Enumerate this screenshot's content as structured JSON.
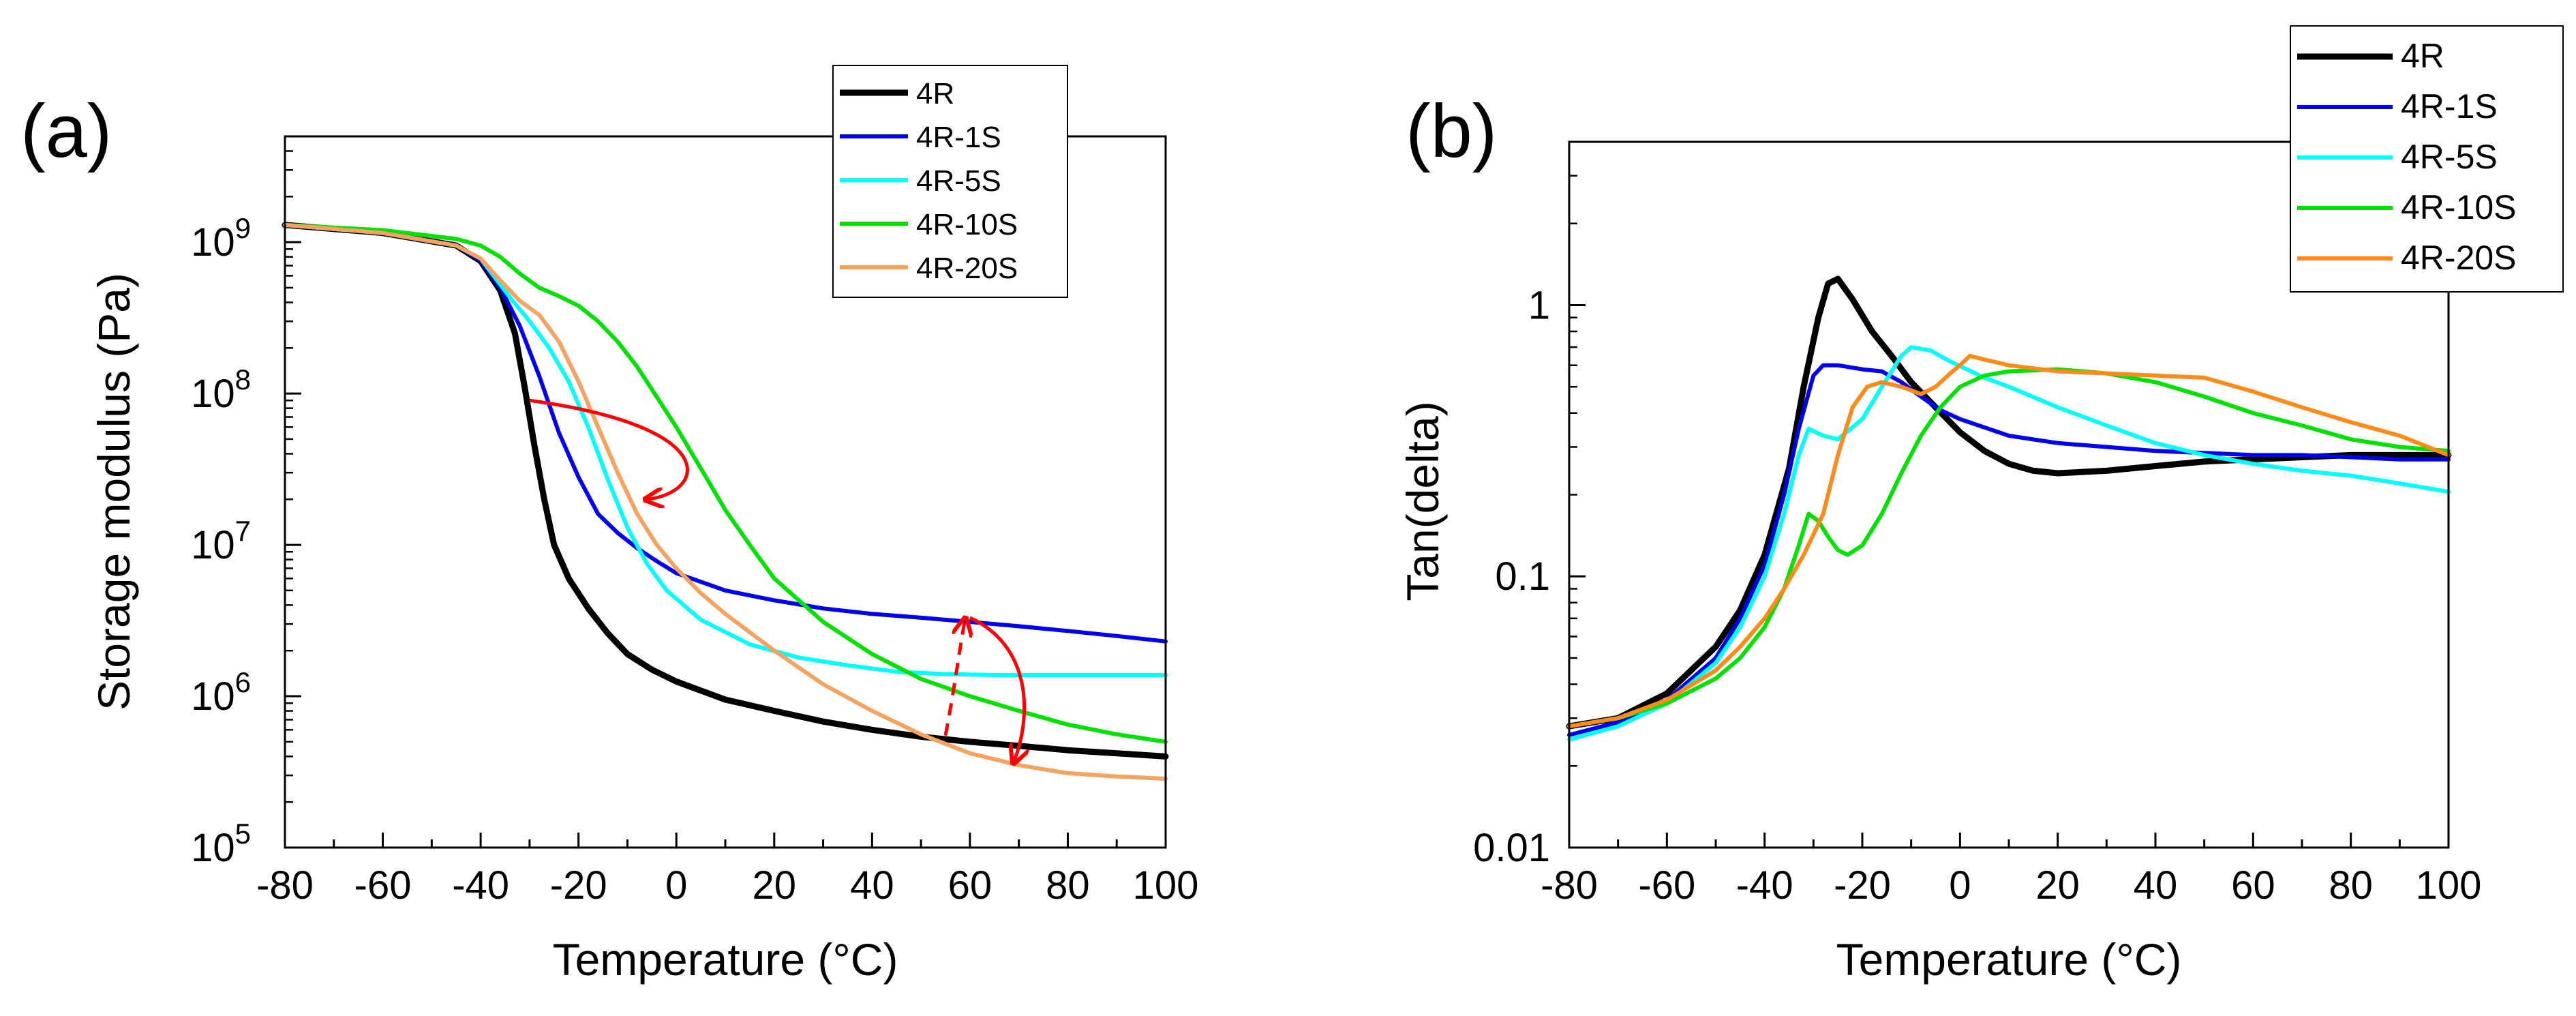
{
  "chart_data": [
    {
      "type": "line",
      "panel_label": "(a)",
      "xlabel": "Temperature (°C)",
      "ylabel": "Storage modulus (Pa)",
      "xlim": [
        -80,
        100
      ],
      "ylim": [
        100000,
        5000000000
      ],
      "yscale": "log",
      "xticks": [
        -80,
        -60,
        -40,
        -20,
        0,
        20,
        40,
        60,
        80,
        100
      ],
      "xtick_labels": [
        "-80",
        "-60",
        "-40",
        "-20",
        "0",
        "20",
        "40",
        "60",
        "80",
        "100"
      ],
      "yticks": [
        {
          "value": 100000,
          "base": "10",
          "exp": "5"
        },
        {
          "value": 1000000,
          "base": "10",
          "exp": "6"
        },
        {
          "value": 10000000,
          "base": "10",
          "exp": "7"
        },
        {
          "value": 100000000,
          "base": "10",
          "exp": "8"
        },
        {
          "value": 1000000000,
          "base": "10",
          "exp": "9"
        }
      ],
      "grid": false,
      "legend_position": "top-right",
      "series": [
        {
          "name": "4R",
          "color": "#000000",
          "x": [
            -80,
            -60,
            -45,
            -40,
            -36,
            -33,
            -31,
            -29,
            -27,
            -25,
            -22,
            -18,
            -14,
            -10,
            -5,
            0,
            10,
            20,
            30,
            40,
            50,
            60,
            70,
            80,
            90,
            100
          ],
          "y": [
            1300000000,
            1150000000,
            950000000,
            750000000,
            480000000,
            250000000,
            110000000,
            45000000,
            20000000,
            10000000,
            6000000,
            3800000,
            2600000,
            1900000,
            1500000,
            1250000,
            950000,
            800000,
            680000,
            600000,
            540000,
            500000,
            470000,
            440000,
            420000,
            400000
          ]
        },
        {
          "name": "4R-1S",
          "color": "#0000ee",
          "x": [
            -80,
            -60,
            -45,
            -40,
            -36,
            -32,
            -28,
            -24,
            -20,
            -16,
            -12,
            -8,
            -4,
            0,
            10,
            20,
            30,
            40,
            50,
            60,
            70,
            80,
            90,
            100
          ],
          "y": [
            1300000000,
            1150000000,
            950000000,
            760000000,
            500000000,
            280000000,
            130000000,
            55000000,
            28000000,
            16000000,
            12000000,
            9500000,
            7800000,
            6500000,
            5000000,
            4300000,
            3800000,
            3500000,
            3300000,
            3100000,
            2900000,
            2700000,
            2500000,
            2300000
          ]
        },
        {
          "name": "4R-5S",
          "color": "#00ffff",
          "x": [
            -80,
            -60,
            -45,
            -40,
            -37,
            -34,
            -30,
            -26,
            -22,
            -18,
            -14,
            -10,
            -6,
            -2,
            5,
            15,
            25,
            35,
            45,
            55,
            65,
            75,
            85,
            100
          ],
          "y": [
            1300000000,
            1150000000,
            950000000,
            780000000,
            580000000,
            430000000,
            300000000,
            200000000,
            120000000,
            60000000,
            27000000,
            13000000,
            7500000,
            5000000,
            3200000,
            2200000,
            1800000,
            1600000,
            1450000,
            1400000,
            1380000,
            1380000,
            1380000,
            1380000
          ]
        },
        {
          "name": "4R-10S",
          "color": "#00e000",
          "x": [
            -80,
            -60,
            -45,
            -40,
            -36,
            -32,
            -28,
            -24,
            -20,
            -16,
            -12,
            -8,
            -4,
            0,
            5,
            10,
            15,
            20,
            30,
            40,
            50,
            60,
            70,
            80,
            90,
            100
          ],
          "y": [
            1300000000,
            1200000000,
            1050000000,
            950000000,
            800000000,
            620000000,
            500000000,
            440000000,
            380000000,
            300000000,
            220000000,
            150000000,
            95000000,
            60000000,
            32000000,
            17000000,
            10000000,
            6000000,
            3100000,
            1900000,
            1300000,
            1000000,
            800000,
            650000,
            560000,
            500000
          ]
        },
        {
          "name": "4R-20S",
          "color": "#f4a460",
          "x": [
            -80,
            -60,
            -45,
            -40,
            -36,
            -32,
            -28,
            -24,
            -20,
            -16,
            -12,
            -8,
            -4,
            0,
            5,
            10,
            20,
            30,
            40,
            50,
            60,
            70,
            80,
            90,
            100
          ],
          "y": [
            1300000000,
            1150000000,
            950000000,
            780000000,
            560000000,
            410000000,
            330000000,
            220000000,
            120000000,
            60000000,
            30000000,
            16000000,
            10000000,
            7000000,
            4800000,
            3500000,
            2000000,
            1200000,
            800000,
            560000,
            420000,
            350000,
            310000,
            295000,
            285000
          ]
        }
      ],
      "annotation_color": "#ff0000"
    },
    {
      "type": "line",
      "panel_label": "(b)",
      "xlabel": "Temperature (°C)",
      "ylabel": "Tan(delta)",
      "xlim": [
        -80,
        100
      ],
      "ylim": [
        0.01,
        4
      ],
      "yscale": "log",
      "xticks": [
        -80,
        -60,
        -40,
        -20,
        0,
        20,
        40,
        60,
        80,
        100
      ],
      "xtick_labels": [
        "-80",
        "-60",
        "-40",
        "-20",
        "0",
        "20",
        "40",
        "60",
        "80",
        "100"
      ],
      "yticks": [
        {
          "value": 0.01,
          "label": "0.01"
        },
        {
          "value": 0.1,
          "label": "0.1"
        },
        {
          "value": 1,
          "label": "1"
        }
      ],
      "grid": false,
      "legend_position": "top-right",
      "series": [
        {
          "name": "4R",
          "color": "#000000",
          "x": [
            -80,
            -70,
            -60,
            -50,
            -45,
            -40,
            -35,
            -32,
            -29,
            -27,
            -25,
            -22,
            -18,
            -14,
            -10,
            -5,
            0,
            5,
            10,
            15,
            20,
            30,
            40,
            50,
            60,
            70,
            80,
            90,
            100
          ],
          "y": [
            0.028,
            0.03,
            0.037,
            0.055,
            0.075,
            0.12,
            0.25,
            0.5,
            0.9,
            1.2,
            1.25,
            1.05,
            0.8,
            0.65,
            0.52,
            0.42,
            0.34,
            0.29,
            0.26,
            0.245,
            0.24,
            0.245,
            0.255,
            0.265,
            0.27,
            0.275,
            0.28,
            0.28,
            0.28
          ]
        },
        {
          "name": "4R-1S",
          "color": "#0000ee",
          "x": [
            -80,
            -70,
            -60,
            -50,
            -45,
            -40,
            -36,
            -33,
            -30,
            -28,
            -25,
            -20,
            -16,
            -12,
            -8,
            -4,
            0,
            10,
            20,
            30,
            40,
            50,
            60,
            70,
            80,
            90,
            100
          ],
          "y": [
            0.026,
            0.029,
            0.035,
            0.05,
            0.07,
            0.11,
            0.2,
            0.35,
            0.55,
            0.6,
            0.6,
            0.58,
            0.57,
            0.52,
            0.46,
            0.41,
            0.38,
            0.33,
            0.31,
            0.3,
            0.29,
            0.285,
            0.28,
            0.28,
            0.275,
            0.27,
            0.27
          ]
        },
        {
          "name": "4R-5S",
          "color": "#00ffff",
          "x": [
            -80,
            -70,
            -60,
            -50,
            -45,
            -40,
            -36,
            -33,
            -31,
            -28,
            -25,
            -20,
            -16,
            -12,
            -10,
            -6,
            -2,
            5,
            10,
            20,
            30,
            40,
            50,
            60,
            70,
            80,
            90,
            100
          ],
          "y": [
            0.025,
            0.028,
            0.034,
            0.048,
            0.065,
            0.1,
            0.17,
            0.28,
            0.35,
            0.33,
            0.32,
            0.38,
            0.5,
            0.65,
            0.7,
            0.68,
            0.62,
            0.54,
            0.5,
            0.42,
            0.36,
            0.31,
            0.28,
            0.26,
            0.245,
            0.235,
            0.22,
            0.205
          ]
        },
        {
          "name": "4R-10S",
          "color": "#00e000",
          "x": [
            -80,
            -70,
            -60,
            -50,
            -45,
            -40,
            -36,
            -33,
            -31,
            -29,
            -27,
            -25,
            -23,
            -20,
            -16,
            -12,
            -8,
            -4,
            0,
            5,
            10,
            20,
            30,
            40,
            50,
            60,
            70,
            80,
            90,
            100
          ],
          "y": [
            0.028,
            0.03,
            0.034,
            0.042,
            0.05,
            0.065,
            0.09,
            0.13,
            0.17,
            0.16,
            0.14,
            0.125,
            0.12,
            0.13,
            0.17,
            0.24,
            0.33,
            0.42,
            0.5,
            0.55,
            0.57,
            0.58,
            0.56,
            0.52,
            0.46,
            0.4,
            0.36,
            0.32,
            0.3,
            0.29
          ]
        },
        {
          "name": "4R-20S",
          "color": "#ff8c1a",
          "x": [
            -80,
            -70,
            -60,
            -50,
            -45,
            -40,
            -36,
            -32,
            -28,
            -25,
            -22,
            -19,
            -16,
            -12,
            -8,
            -5,
            -2,
            0,
            2,
            5,
            10,
            20,
            30,
            40,
            50,
            60,
            70,
            80,
            90,
            100
          ],
          "y": [
            0.028,
            0.03,
            0.035,
            0.045,
            0.055,
            0.07,
            0.09,
            0.12,
            0.17,
            0.28,
            0.42,
            0.5,
            0.52,
            0.5,
            0.47,
            0.5,
            0.56,
            0.6,
            0.65,
            0.63,
            0.6,
            0.57,
            0.56,
            0.55,
            0.54,
            0.48,
            0.42,
            0.37,
            0.33,
            0.28
          ]
        }
      ]
    }
  ]
}
